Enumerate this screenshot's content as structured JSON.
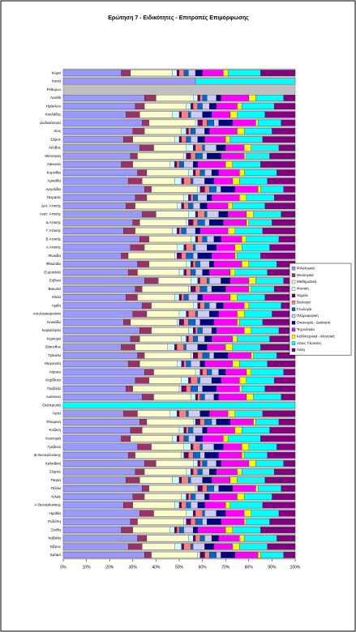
{
  "chart_data": {
    "type": "stacked-barh",
    "title": "Ερώτηση 7 - Ειδικότητες - Επιτροπές Επιμόρφωσης",
    "categories": [
      "Χώρα",
      "Χανιά",
      "Ρέθυμνο",
      "Λασίθι",
      "Ηράκλειο",
      "Κυκλάδες",
      "Δωδεκάνησα",
      "Χίος",
      "Σάμος",
      "Λέσβος",
      "Μεσσηνία",
      "Λακωνία",
      "Κορινθία",
      "Αρκαδία",
      "Αργολίδα",
      "Πειραιάς",
      "Δυτ. Αττικής",
      "Ανατ. Αττικής",
      "Δ Αττικής",
      "Γ Αττικής",
      "Β Αττικής",
      "Α Αττικής",
      "Φωκίδα",
      "Φθιώτιδα",
      "Ευρυτανία",
      "Εύβοια",
      "Βοιωτία",
      "Ηλεία",
      "Αχαΐα",
      "Αιτωλοακαρνανία",
      "Λευκάδα",
      "Κεφαλληνία",
      "Κέρκυρα",
      "Ζάκυνθος",
      "Τρίκαλα",
      "Μαγνησία",
      "Λάρισα",
      "Καρδίτσα",
      "Πρέβεζα",
      "Ιωάννινα",
      "Θεσπρωτία",
      "Άρτα",
      "Φλώρινα",
      "Κοζάνη",
      "Καστοριά",
      "Γρεβενά",
      "Β Θεσσαλονίκης",
      "Χαλκιδική",
      "Σέρρες",
      "Πιερία",
      "Πέλλα",
      "Κιλκίς",
      "Α Θεσσαλονίκης",
      "Ημαθία",
      "Ροδόπη",
      "Ξάνθη",
      "Καβάλα",
      "Έβρος",
      "Δράμα"
    ],
    "xlim": [
      0,
      100
    ],
    "xticks": [
      {
        "value": 0,
        "label": "0%"
      },
      {
        "value": 10,
        "label": "10%"
      },
      {
        "value": 20,
        "label": "20%"
      },
      {
        "value": 30,
        "label": "30%"
      },
      {
        "value": 40,
        "label": "40%"
      },
      {
        "value": 50,
        "label": "50%"
      },
      {
        "value": 60,
        "label": "60%"
      },
      {
        "value": 70,
        "label": "70%"
      },
      {
        "value": 80,
        "label": "80%"
      },
      {
        "value": 90,
        "label": "90%"
      },
      {
        "value": 100,
        "label": "100%"
      }
    ],
    "legend": "right",
    "series": [
      {
        "name": "Φιλολογικά",
        "color": "#9999ff",
        "values": [
          25,
          57,
          0,
          35,
          31,
          27,
          34,
          30,
          26,
          33,
          29,
          25,
          32,
          28,
          35,
          31,
          27,
          34,
          30,
          26,
          33,
          29,
          25,
          32,
          28,
          35,
          31,
          27,
          34,
          30,
          26,
          33,
          29,
          25,
          32,
          28,
          35,
          31,
          27,
          34,
          0,
          26,
          33,
          29,
          25,
          32,
          28,
          35,
          31,
          27,
          34,
          30,
          26,
          33,
          29,
          25,
          32,
          28,
          35
        ]
      },
      {
        "name": "Θεολογικά",
        "color": "#993366",
        "values": [
          4,
          0,
          0,
          5,
          4,
          6,
          3,
          5,
          4,
          6,
          3,
          5,
          4,
          6,
          3,
          5,
          4,
          6,
          3,
          5,
          4,
          6,
          3,
          5,
          4,
          6,
          3,
          5,
          4,
          6,
          3,
          5,
          4,
          6,
          3,
          5,
          4,
          6,
          3,
          5,
          0,
          6,
          3,
          5,
          4,
          6,
          3,
          5,
          4,
          6,
          3,
          5,
          4,
          6,
          3,
          5,
          4,
          6,
          3
        ]
      },
      {
        "name": "Μαθηματικά",
        "color": "#ffffcc",
        "values": [
          18,
          0,
          0,
          16,
          18,
          14,
          20,
          16,
          18,
          14,
          20,
          16,
          18,
          14,
          20,
          16,
          18,
          14,
          20,
          16,
          18,
          14,
          20,
          16,
          18,
          14,
          20,
          16,
          18,
          14,
          20,
          16,
          18,
          14,
          20,
          16,
          18,
          14,
          20,
          16,
          0,
          14,
          20,
          16,
          18,
          14,
          20,
          16,
          18,
          14,
          20,
          16,
          18,
          14,
          20,
          16,
          18,
          14,
          20
        ]
      },
      {
        "name": "Φυσική",
        "color": "#ccffff",
        "values": [
          2,
          0,
          0,
          2,
          2,
          3,
          1,
          2,
          2,
          3,
          1,
          2,
          2,
          3,
          1,
          2,
          2,
          3,
          1,
          2,
          2,
          3,
          1,
          2,
          2,
          3,
          1,
          2,
          2,
          3,
          1,
          2,
          2,
          3,
          1,
          2,
          2,
          3,
          1,
          2,
          0,
          3,
          1,
          2,
          2,
          3,
          1,
          2,
          2,
          3,
          1,
          2,
          2,
          3,
          1,
          2,
          2,
          3,
          1
        ]
      },
      {
        "name": "Χημεία",
        "color": "#660066",
        "values": [
          1,
          0,
          0,
          1,
          1,
          1,
          2,
          1,
          1,
          1,
          2,
          1,
          1,
          1,
          2,
          1,
          1,
          1,
          2,
          1,
          1,
          1,
          2,
          1,
          1,
          1,
          2,
          1,
          1,
          1,
          2,
          1,
          1,
          1,
          2,
          1,
          1,
          1,
          2,
          1,
          0,
          1,
          2,
          1,
          1,
          1,
          2,
          1,
          1,
          1,
          2,
          1,
          1,
          1,
          2,
          1,
          1,
          1,
          2
        ]
      },
      {
        "name": "Βιολογία",
        "color": "#ff8080",
        "values": [
          2,
          0,
          0,
          1,
          2,
          3,
          2,
          1,
          2,
          3,
          2,
          1,
          2,
          3,
          2,
          1,
          2,
          3,
          2,
          1,
          2,
          3,
          2,
          1,
          2,
          3,
          2,
          1,
          2,
          3,
          2,
          1,
          2,
          3,
          2,
          1,
          2,
          3,
          2,
          1,
          0,
          3,
          2,
          1,
          2,
          3,
          2,
          1,
          2,
          3,
          2,
          1,
          2,
          3,
          2,
          1,
          2,
          3,
          2
        ]
      },
      {
        "name": "Γεωλογία",
        "color": "#0066cc",
        "values": [
          2,
          0,
          0,
          2,
          2,
          1,
          3,
          2,
          2,
          1,
          3,
          2,
          2,
          1,
          3,
          2,
          2,
          1,
          3,
          2,
          2,
          1,
          3,
          2,
          2,
          1,
          3,
          2,
          2,
          1,
          3,
          2,
          2,
          1,
          3,
          2,
          2,
          1,
          3,
          2,
          0,
          1,
          3,
          2,
          2,
          1,
          3,
          2,
          2,
          1,
          3,
          2,
          2,
          1,
          3,
          2,
          2,
          1,
          3
        ]
      },
      {
        "name": "Πληροφορική",
        "color": "#ccccff",
        "values": [
          3,
          0,
          0,
          4,
          3,
          5,
          2,
          4,
          3,
          5,
          2,
          4,
          3,
          5,
          2,
          4,
          3,
          5,
          2,
          4,
          3,
          5,
          2,
          4,
          3,
          5,
          2,
          4,
          3,
          5,
          2,
          4,
          3,
          5,
          2,
          4,
          3,
          5,
          2,
          4,
          0,
          5,
          2,
          4,
          3,
          5,
          2,
          4,
          3,
          5,
          2,
          4,
          3,
          5,
          2,
          4,
          3,
          5,
          2
        ]
      },
      {
        "name": "Οικονομία - Διοίκηση",
        "color": "#000080",
        "values": [
          3,
          0,
          0,
          2,
          3,
          4,
          6,
          2,
          3,
          4,
          6,
          2,
          3,
          4,
          6,
          2,
          3,
          4,
          6,
          2,
          3,
          4,
          6,
          2,
          3,
          4,
          6,
          2,
          3,
          4,
          6,
          2,
          3,
          4,
          6,
          2,
          3,
          4,
          6,
          2,
          0,
          4,
          6,
          2,
          3,
          4,
          6,
          2,
          3,
          4,
          6,
          2,
          3,
          4,
          6,
          2,
          3,
          4,
          6
        ]
      },
      {
        "name": "Τεχνολογία",
        "color": "#ff00ff",
        "values": [
          9,
          0,
          0,
          12,
          9,
          8,
          10,
          12,
          9,
          8,
          10,
          12,
          9,
          8,
          10,
          12,
          9,
          8,
          10,
          12,
          9,
          8,
          10,
          12,
          9,
          8,
          10,
          12,
          9,
          8,
          10,
          12,
          9,
          8,
          10,
          12,
          9,
          8,
          10,
          12,
          0,
          8,
          10,
          12,
          9,
          8,
          10,
          12,
          9,
          8,
          10,
          12,
          9,
          8,
          10,
          12,
          9,
          8,
          10
        ]
      },
      {
        "name": "Καλλιτεχνικά - Μουσική",
        "color": "#ffff00",
        "values": [
          2,
          0,
          0,
          3,
          2,
          3,
          1,
          3,
          2,
          3,
          1,
          3,
          2,
          3,
          1,
          3,
          2,
          3,
          1,
          3,
          2,
          3,
          1,
          3,
          2,
          3,
          1,
          3,
          2,
          3,
          1,
          3,
          2,
          3,
          1,
          3,
          2,
          3,
          1,
          3,
          0,
          3,
          1,
          3,
          2,
          3,
          1,
          3,
          2,
          3,
          1,
          3,
          2,
          3,
          1,
          3,
          2,
          3,
          1
        ]
      },
      {
        "name": "Ξένες Γλώσσες",
        "color": "#00ffff",
        "values": [
          14,
          43,
          0,
          12,
          14,
          12,
          10,
          12,
          14,
          12,
          10,
          12,
          14,
          12,
          10,
          12,
          14,
          12,
          10,
          12,
          14,
          12,
          10,
          12,
          14,
          12,
          10,
          12,
          14,
          12,
          10,
          12,
          14,
          12,
          10,
          12,
          14,
          12,
          10,
          12,
          100,
          12,
          10,
          12,
          14,
          12,
          10,
          12,
          14,
          12,
          10,
          12,
          14,
          12,
          10,
          12,
          14,
          12,
          10
        ]
      },
      {
        "name": "Άλλη",
        "color": "#800080",
        "values": [
          15,
          0,
          0,
          5,
          9,
          13,
          6,
          10,
          14,
          7,
          11,
          15,
          8,
          12,
          5,
          9,
          13,
          6,
          10,
          14,
          7,
          11,
          15,
          8,
          12,
          5,
          9,
          13,
          6,
          10,
          14,
          7,
          11,
          15,
          8,
          12,
          5,
          9,
          13,
          6,
          0,
          14,
          7,
          11,
          15,
          8,
          12,
          5,
          9,
          13,
          6,
          10,
          14,
          7,
          11,
          15,
          8,
          12,
          5
        ]
      }
    ]
  }
}
